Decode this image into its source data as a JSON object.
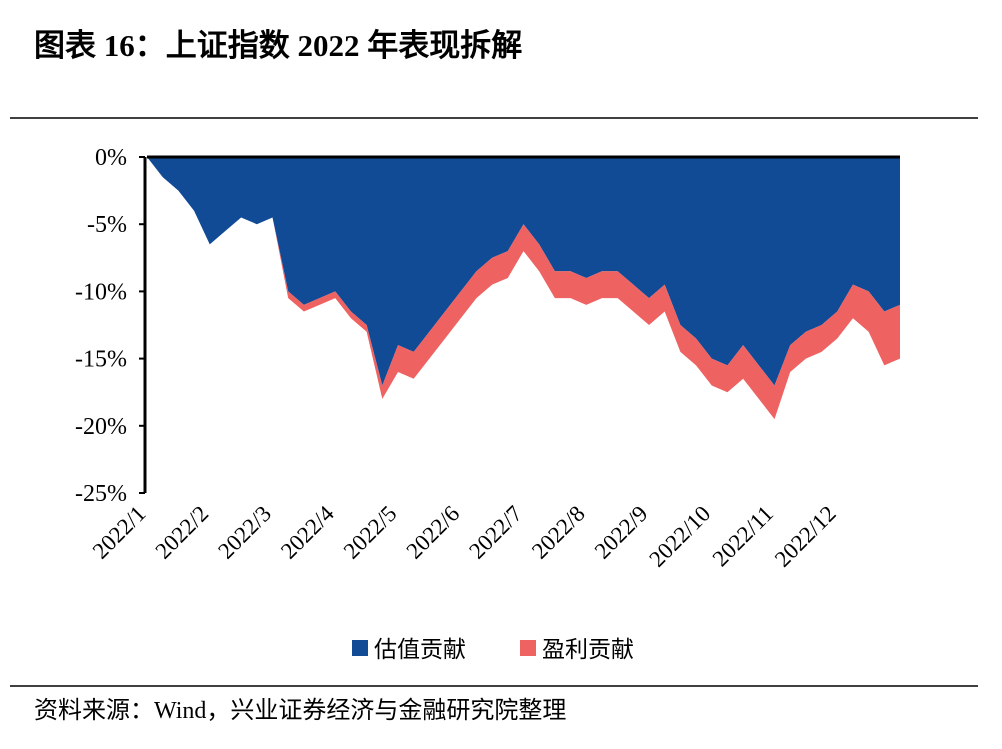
{
  "chart_data": {
    "type": "stacked_area",
    "title": "图表 16：上证指数 2022 年表现拆解",
    "source": "资料来源：Wind，兴业证券经济与金融研究院整理",
    "categories": [
      "2022/1",
      null,
      null,
      null,
      "2022/2",
      null,
      null,
      null,
      "2022/3",
      null,
      null,
      null,
      "2022/4",
      null,
      null,
      null,
      "2022/5",
      null,
      null,
      null,
      "2022/6",
      null,
      null,
      null,
      "2022/7",
      null,
      null,
      null,
      "2022/8",
      null,
      null,
      null,
      "2022/9",
      null,
      null,
      null,
      "2022/10",
      null,
      null,
      null,
      "2022/11",
      null,
      null,
      null,
      "2022/12",
      null,
      null,
      null,
      null
    ],
    "series": [
      {
        "name": "估值贡献",
        "color": "#114a95",
        "values": [
          0,
          -1.5,
          -2.5,
          -4,
          -6.5,
          -5.5,
          -4.5,
          -5,
          -4.5,
          -10,
          -11,
          -10.5,
          -10,
          -11.5,
          -12.5,
          -17,
          -14,
          -14.5,
          -13,
          -11.5,
          -10,
          -8.5,
          -7.5,
          -7,
          -5,
          -6.5,
          -8.5,
          -8.5,
          -9,
          -8.5,
          -8.5,
          -9.5,
          -10.5,
          -9.5,
          -12.5,
          -13.5,
          -15,
          -15.5,
          -14,
          -15.5,
          -17,
          -14,
          -13,
          -12.5,
          -11.5,
          -9.5,
          -10,
          -11.5,
          -11
        ]
      },
      {
        "name": "盈利贡献",
        "color": "#ee6262",
        "values": [
          0,
          0,
          0,
          0,
          0,
          0,
          0,
          0,
          0,
          -0.5,
          -0.5,
          -0.5,
          -0.5,
          -0.5,
          -0.5,
          -1,
          -2,
          -2,
          -2,
          -2,
          -2,
          -2,
          -2,
          -2,
          -2,
          -2,
          -2,
          -2,
          -2,
          -2,
          -2,
          -2,
          -2,
          -2,
          -2,
          -2,
          -2,
          -2,
          -2.5,
          -2.5,
          -2.5,
          -2,
          -2,
          -2,
          -2,
          -2.5,
          -3,
          -4,
          -4
        ]
      }
    ],
    "ylim": [
      -25,
      0
    ],
    "yticks": [
      {
        "value": 0,
        "label": "0%"
      },
      {
        "value": -5,
        "label": "-5%"
      },
      {
        "value": -10,
        "label": "-10%"
      },
      {
        "value": -15,
        "label": "-15%"
      },
      {
        "value": -20,
        "label": "-20%"
      },
      {
        "value": -25,
        "label": "-25%"
      }
    ]
  }
}
